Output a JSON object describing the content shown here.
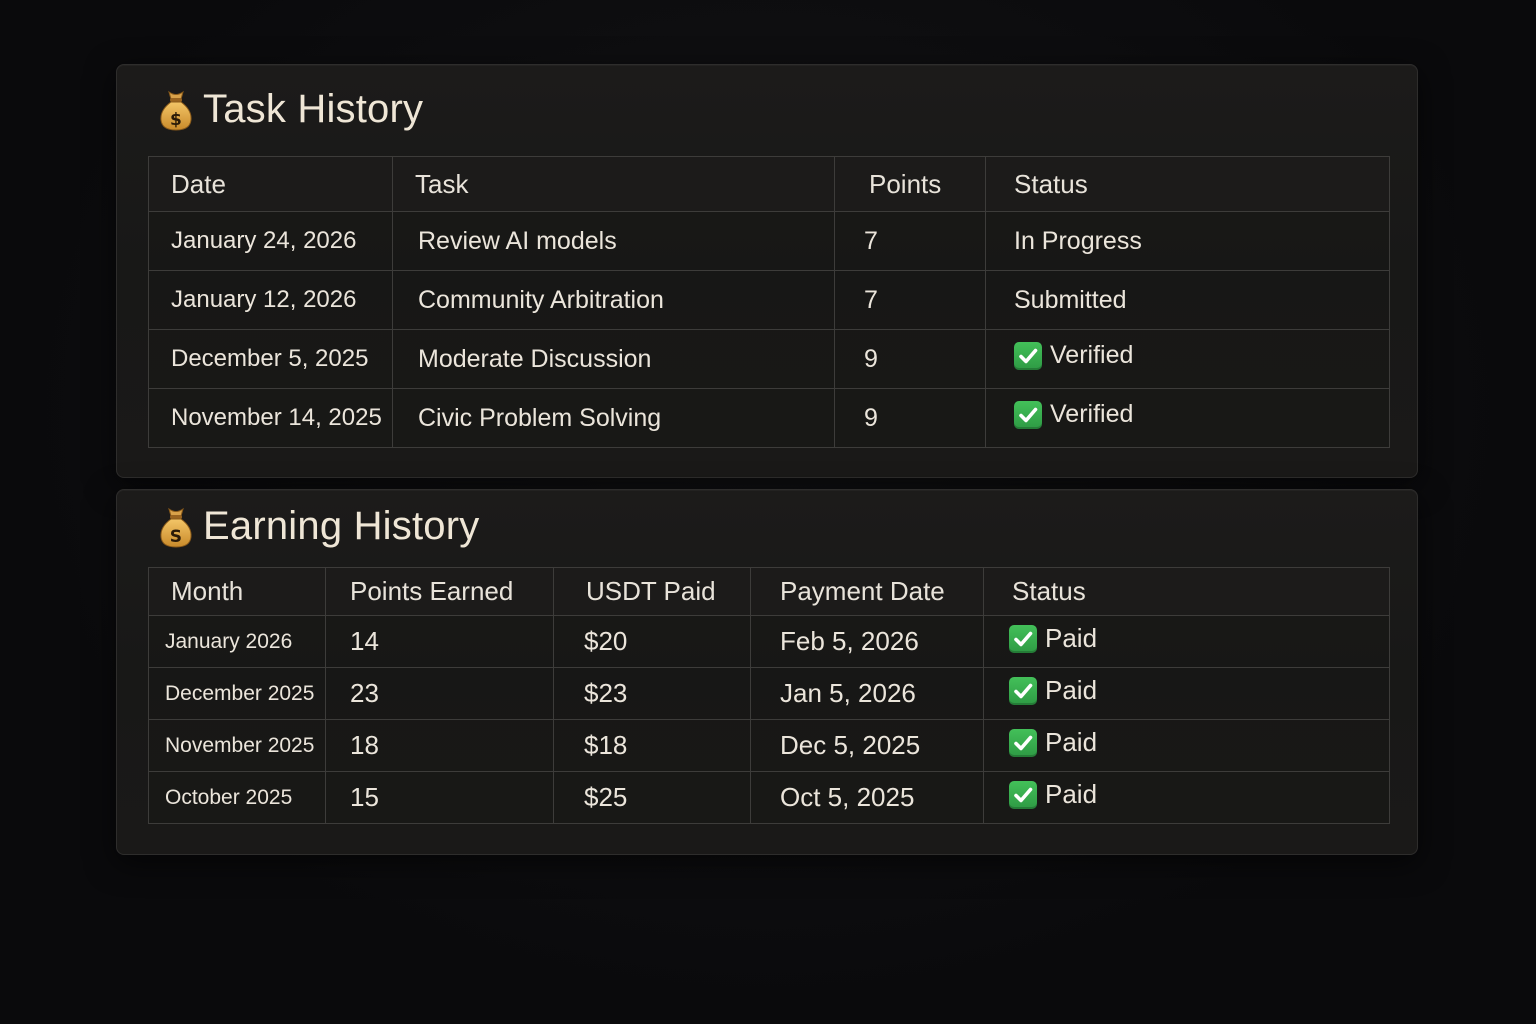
{
  "task_history": {
    "title": "Task History",
    "icon": "money-bag-icon",
    "columns": [
      "Date",
      "Task",
      "Points",
      "Status"
    ],
    "rows": [
      {
        "date": "January 24, 2026",
        "task": "Review AI models",
        "points": "7",
        "status": "In Progress",
        "status_type": "pending"
      },
      {
        "date": "January 12, 2026",
        "task": "Community Arbitration",
        "points": "7",
        "status": "Submitted",
        "status_type": "pending"
      },
      {
        "date": "December 5, 2025",
        "task": "Moderate Discussion",
        "points": "9",
        "status": "Verified",
        "status_type": "check"
      },
      {
        "date": "November 14, 2025",
        "task": "Civic Problem Solving",
        "points": "9",
        "status": "Verified",
        "status_type": "check"
      }
    ]
  },
  "earning_history": {
    "title": "Earning History",
    "icon": "money-bag-icon",
    "columns": [
      "Month",
      "Points Earned",
      "USDT Paid",
      "Payment Date",
      "Status"
    ],
    "rows": [
      {
        "month": "January 2026",
        "points": "14",
        "usdt": "$20",
        "payment_date": "Feb 5, 2026",
        "status": "Paid"
      },
      {
        "month": "December 2025",
        "points": "23",
        "usdt": "$23",
        "payment_date": "Jan 5, 2026",
        "status": "Paid"
      },
      {
        "month": "November 2025",
        "points": "18",
        "usdt": "$18",
        "payment_date": "Dec 5, 2025",
        "status": "Paid"
      },
      {
        "month": "October 2025",
        "points": "15",
        "usdt": "$25",
        "payment_date": "Oct 5, 2025",
        "status": "Paid"
      }
    ]
  },
  "colors": {
    "pending_status": "#f0a24d",
    "check_green": "#3bb251",
    "background": "#0a0a0c",
    "panel": "#1b1a19"
  }
}
